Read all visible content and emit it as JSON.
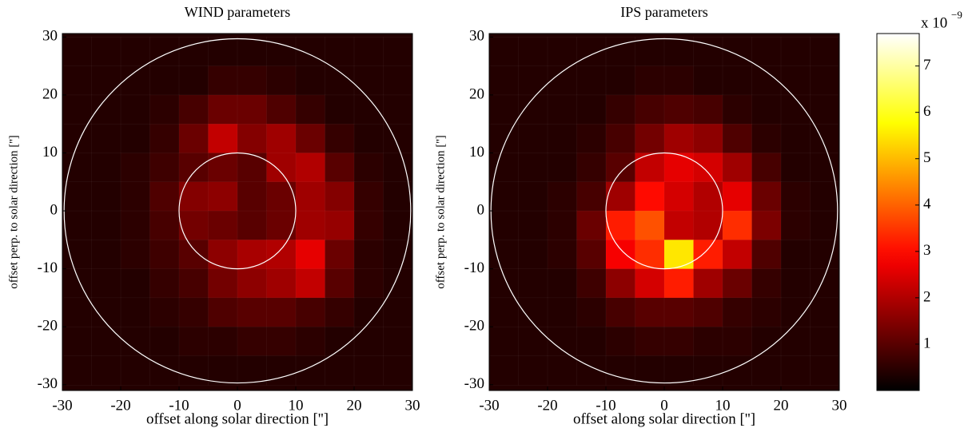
{
  "chart_data": [
    {
      "type": "heatmap",
      "title": "WIND parameters",
      "xlabel": "offset along solar direction ['']",
      "ylabel": "offset perp. to solar direction ['']",
      "xlim": [
        -30,
        30
      ],
      "ylim": [
        -31,
        30.6
      ],
      "xticks": [
        -30,
        -20,
        -10,
        0,
        10,
        20,
        30
      ],
      "yticks": [
        -30,
        -20,
        -10,
        0,
        10,
        20,
        30
      ],
      "circles": [
        10,
        29.7
      ],
      "x": [
        -27.5,
        -22.5,
        -17.5,
        -12.5,
        -7.5,
        -2.5,
        2.5,
        7.5,
        12.5,
        17.5,
        22.5,
        27.5
      ],
      "y": [
        27.5,
        22.5,
        17.5,
        12.5,
        7.5,
        2.5,
        -2.5,
        -7.5,
        -12.5,
        -17.5,
        -22.5,
        -27.5
      ],
      "values": [
        [
          0.4,
          0.4,
          0.4,
          0.4,
          0.4,
          0.4,
          0.4,
          0.4,
          0.4,
          0.4,
          0.4,
          0.4
        ],
        [
          0.4,
          0.4,
          0.4,
          0.4,
          0.4,
          0.6,
          0.6,
          0.5,
          0.4,
          0.4,
          0.4,
          0.4
        ],
        [
          0.4,
          0.4,
          0.4,
          0.5,
          0.8,
          1.2,
          1.2,
          0.9,
          0.6,
          0.4,
          0.4,
          0.4
        ],
        [
          0.4,
          0.4,
          0.4,
          0.6,
          1.2,
          2.2,
          1.5,
          1.8,
          1.2,
          0.6,
          0.4,
          0.4
        ],
        [
          0.4,
          0.4,
          0.5,
          0.7,
          1.0,
          1.2,
          1.0,
          1.8,
          2.0,
          1.0,
          0.5,
          0.4
        ],
        [
          0.4,
          0.4,
          0.5,
          0.9,
          1.5,
          1.6,
          1.0,
          1.2,
          1.8,
          1.5,
          0.6,
          0.4
        ],
        [
          0.4,
          0.4,
          0.5,
          0.8,
          1.3,
          1.2,
          1.0,
          1.2,
          1.8,
          1.7,
          0.6,
          0.4
        ],
        [
          0.4,
          0.4,
          0.5,
          0.7,
          1.0,
          1.6,
          1.9,
          2.0,
          2.6,
          1.2,
          0.5,
          0.4
        ],
        [
          0.4,
          0.4,
          0.4,
          0.6,
          0.8,
          1.3,
          1.6,
          1.8,
          2.2,
          1.0,
          0.5,
          0.4
        ],
        [
          0.4,
          0.4,
          0.4,
          0.5,
          0.6,
          0.9,
          1.0,
          1.0,
          0.8,
          0.6,
          0.4,
          0.4
        ],
        [
          0.4,
          0.4,
          0.4,
          0.4,
          0.5,
          0.5,
          0.6,
          0.6,
          0.5,
          0.4,
          0.4,
          0.4
        ],
        [
          0.4,
          0.4,
          0.4,
          0.4,
          0.4,
          0.4,
          0.4,
          0.4,
          0.4,
          0.4,
          0.4,
          0.4
        ]
      ]
    },
    {
      "type": "heatmap",
      "title": "IPS parameters",
      "xlabel": "offset along solar direction ['']",
      "ylabel": "offset perp. to solar direction ['']",
      "xlim": [
        -30,
        30
      ],
      "ylim": [
        -31,
        30.6
      ],
      "xticks": [
        -30,
        -20,
        -10,
        0,
        10,
        20,
        30
      ],
      "yticks": [
        -30,
        -20,
        -10,
        0,
        10,
        20,
        30
      ],
      "circles": [
        10,
        29.7
      ],
      "x": [
        -27.5,
        -22.5,
        -17.5,
        -12.5,
        -7.5,
        -2.5,
        2.5,
        7.5,
        12.5,
        17.5,
        22.5,
        27.5
      ],
      "y": [
        27.5,
        22.5,
        17.5,
        12.5,
        7.5,
        2.5,
        -2.5,
        -7.5,
        -12.5,
        -17.5,
        -22.5,
        -27.5
      ],
      "values": [
        [
          0.4,
          0.4,
          0.4,
          0.4,
          0.4,
          0.4,
          0.4,
          0.4,
          0.4,
          0.4,
          0.4,
          0.4
        ],
        [
          0.4,
          0.4,
          0.4,
          0.4,
          0.4,
          0.5,
          0.5,
          0.4,
          0.4,
          0.4,
          0.4,
          0.4
        ],
        [
          0.4,
          0.4,
          0.4,
          0.4,
          0.6,
          0.8,
          0.9,
          0.8,
          0.5,
          0.4,
          0.4,
          0.4
        ],
        [
          0.4,
          0.4,
          0.4,
          0.5,
          0.8,
          1.3,
          1.8,
          1.6,
          0.9,
          0.5,
          0.4,
          0.4
        ],
        [
          0.4,
          0.4,
          0.4,
          0.6,
          1.0,
          2.2,
          2.6,
          2.4,
          1.8,
          0.8,
          0.4,
          0.4
        ],
        [
          0.4,
          0.4,
          0.5,
          0.8,
          1.8,
          3.0,
          2.4,
          2.0,
          2.6,
          1.2,
          0.5,
          0.4
        ],
        [
          0.4,
          0.4,
          0.5,
          1.2,
          3.2,
          3.8,
          2.2,
          2.0,
          3.4,
          1.4,
          0.5,
          0.4
        ],
        [
          0.4,
          0.4,
          0.5,
          1.0,
          2.8,
          3.4,
          5.5,
          3.2,
          2.2,
          0.9,
          0.4,
          0.4
        ],
        [
          0.4,
          0.4,
          0.4,
          0.7,
          1.6,
          2.4,
          3.2,
          1.8,
          1.2,
          0.6,
          0.4,
          0.4
        ],
        [
          0.4,
          0.4,
          0.4,
          0.5,
          0.8,
          1.0,
          1.0,
          0.9,
          0.6,
          0.5,
          0.4,
          0.4
        ],
        [
          0.4,
          0.4,
          0.4,
          0.4,
          0.5,
          0.6,
          0.6,
          0.5,
          0.5,
          0.4,
          0.4,
          0.4
        ],
        [
          0.4,
          0.4,
          0.4,
          0.4,
          0.4,
          0.4,
          0.4,
          0.4,
          0.4,
          0.4,
          0.4,
          0.4
        ]
      ]
    },
    {
      "type": "colorbar",
      "clim": [
        0,
        7.7
      ],
      "ticks": [
        1,
        2,
        3,
        4,
        5,
        6,
        7
      ],
      "scale_label": "x 10",
      "scale_exponent": "−9"
    }
  ]
}
